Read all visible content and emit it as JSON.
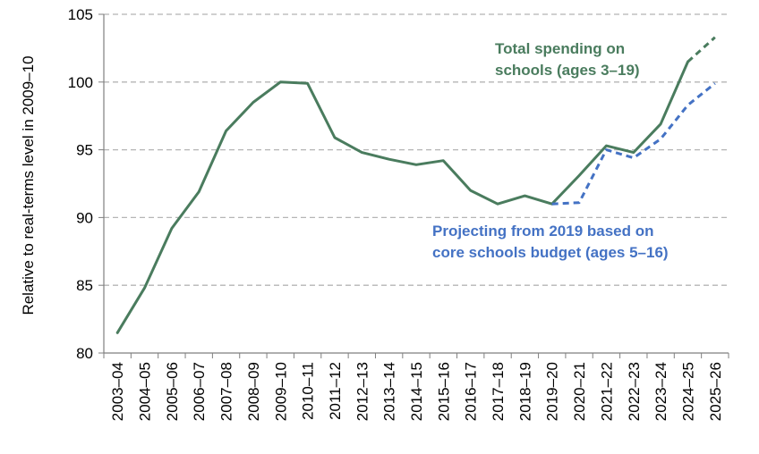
{
  "chart_data": {
    "type": "line",
    "title": "",
    "xlabel": "",
    "ylabel": "Relative to real-terms level in 2009–10",
    "ylim": [
      80,
      105
    ],
    "yticks": [
      80,
      85,
      90,
      95,
      100,
      105
    ],
    "grid": "horizontal-dashed",
    "categories": [
      "2003–04",
      "2004–05",
      "2005–06",
      "2006–07",
      "2007–08",
      "2008–09",
      "2009–10",
      "2010–11",
      "2011–12",
      "2012–13",
      "2013–14",
      "2014–15",
      "2015–16",
      "2016–17",
      "2017–18",
      "2018–19",
      "2019–20",
      "2020–21",
      "2021–22",
      "2022–23",
      "2023–24",
      "2024–25",
      "2025–26"
    ],
    "series": [
      {
        "name": "Total spending on schools (ages 3–19)",
        "color": "#4a7c5e",
        "style": "solid",
        "values": [
          81.5,
          84.8,
          89.2,
          91.9,
          96.4,
          98.5,
          100.0,
          99.9,
          95.9,
          94.8,
          94.3,
          93.9,
          94.2,
          92.0,
          91.0,
          91.6,
          91.0,
          93.1,
          95.3,
          94.8,
          96.9,
          101.5,
          null
        ]
      },
      {
        "name": "Total spending on schools (ages 3–19) projection",
        "color": "#4a7c5e",
        "style": "dashed",
        "values": [
          null,
          null,
          null,
          null,
          null,
          null,
          null,
          null,
          null,
          null,
          null,
          null,
          null,
          null,
          null,
          null,
          null,
          null,
          null,
          null,
          null,
          101.5,
          103.3
        ]
      },
      {
        "name": "Projecting from 2019 based on core schools budget (ages 5–16)",
        "color": "#4472c4",
        "style": "dashed",
        "values": [
          null,
          null,
          null,
          null,
          null,
          null,
          null,
          null,
          null,
          null,
          null,
          null,
          null,
          null,
          null,
          null,
          91.0,
          91.1,
          95.0,
          94.4,
          95.8,
          98.3,
          99.9
        ]
      }
    ],
    "annotations": [
      {
        "lines": [
          "Total spending on",
          "schools (ages 3–19)"
        ],
        "color": "#4a7c5e"
      },
      {
        "lines": [
          "Projecting from 2019 based on",
          "core schools budget (ages 5–16)"
        ],
        "color": "#4472c4"
      }
    ]
  }
}
